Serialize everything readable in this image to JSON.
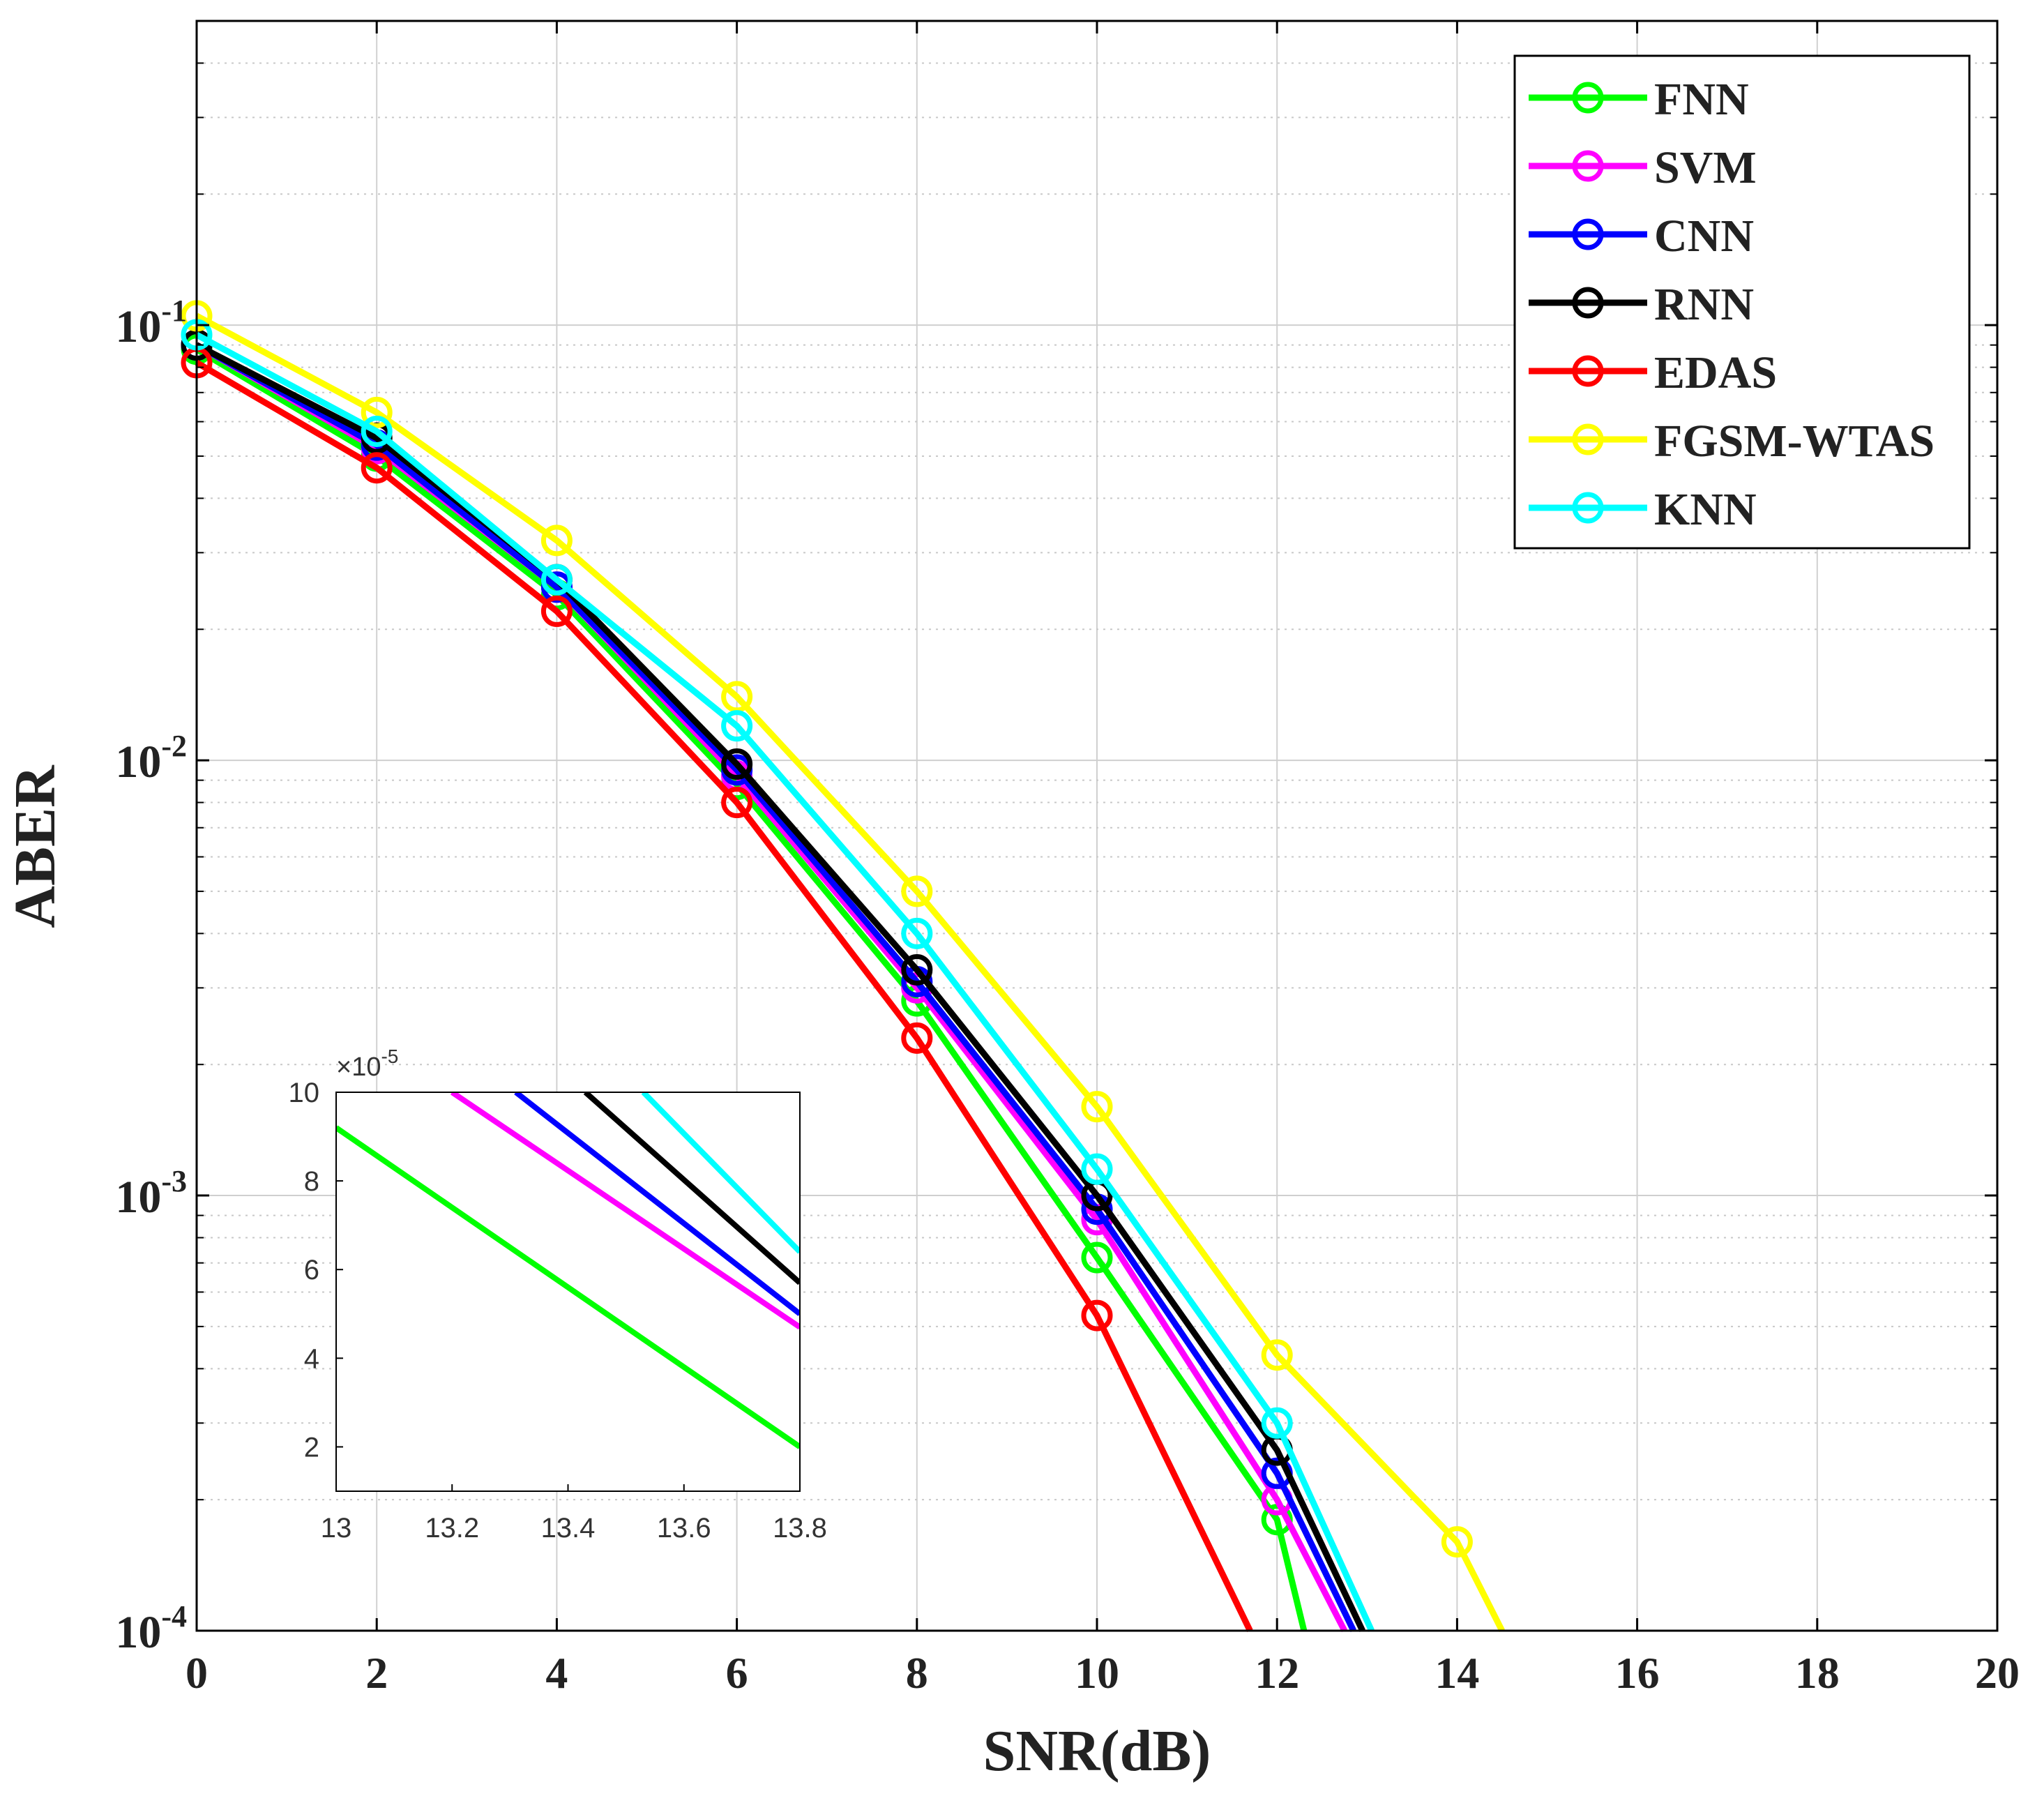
{
  "chart_data": {
    "type": "line",
    "title": "",
    "xlabel": "SNR(dB)",
    "ylabel": "ABER",
    "xlim": [
      0,
      20
    ],
    "ylim": [
      0.0001,
      0.5
    ],
    "yscale": "log",
    "grid": true,
    "legend_position": "top-right",
    "x_ticks": [
      "0",
      "2",
      "4",
      "6",
      "8",
      "10",
      "12",
      "14",
      "16",
      "18",
      "20"
    ],
    "y_ticks": [
      {
        "base": "10",
        "exp": "-1",
        "value": 0.1
      },
      {
        "base": "10",
        "exp": "-2",
        "value": 0.01
      },
      {
        "base": "10",
        "exp": "-3",
        "value": 0.001
      },
      {
        "base": "10",
        "exp": "-4",
        "value": 0.0001
      }
    ],
    "series": [
      {
        "name": "FNN",
        "color": "#00ff00",
        "x": [
          0,
          2,
          4,
          6,
          8,
          10,
          12,
          12.3
        ],
        "y": [
          0.088,
          0.05,
          0.024,
          0.0088,
          0.0028,
          0.00072,
          0.00018,
          0.0001
        ],
        "marker_count": 7
      },
      {
        "name": "SVM",
        "color": "#ff00ff",
        "x": [
          0,
          2,
          4,
          6,
          8,
          10,
          12,
          12.75
        ],
        "y": [
          0.09,
          0.052,
          0.025,
          0.0092,
          0.003,
          0.00088,
          0.0002,
          0.0001
        ],
        "marker_count": 7
      },
      {
        "name": "CNN",
        "color": "#0000ff",
        "x": [
          0,
          2,
          4,
          6,
          8,
          10,
          12,
          12.85
        ],
        "y": [
          0.09,
          0.053,
          0.025,
          0.0095,
          0.0031,
          0.00093,
          0.00023,
          0.0001
        ],
        "marker_count": 7
      },
      {
        "name": "RNN",
        "color": "#000000",
        "x": [
          0,
          2,
          4,
          6,
          8,
          10,
          12,
          12.95
        ],
        "y": [
          0.09,
          0.055,
          0.026,
          0.0098,
          0.0033,
          0.001,
          0.00026,
          0.0001
        ],
        "marker_count": 7
      },
      {
        "name": "EDAS",
        "color": "#ff0000",
        "x": [
          0,
          2,
          4,
          6,
          8,
          10,
          11.7
        ],
        "y": [
          0.082,
          0.047,
          0.022,
          0.008,
          0.0023,
          0.00053,
          0.0001
        ],
        "marker_count": 6
      },
      {
        "name": "FGSM-WTAS",
        "color": "#ffff00",
        "x": [
          0,
          2,
          4,
          6,
          8,
          10,
          12,
          14,
          14.5
        ],
        "y": [
          0.105,
          0.063,
          0.032,
          0.014,
          0.005,
          0.0016,
          0.00043,
          0.00016,
          0.0001
        ],
        "marker_count": 8
      },
      {
        "name": "KNN",
        "color": "#00ffff",
        "x": [
          0,
          2,
          4,
          6,
          8,
          10,
          12,
          13.05
        ],
        "y": [
          0.095,
          0.057,
          0.026,
          0.012,
          0.004,
          0.00115,
          0.0003,
          0.0001
        ],
        "marker_count": 7
      }
    ],
    "inset": {
      "xlim": [
        13,
        13.8
      ],
      "ylim": [
        1,
        10
      ],
      "multiplier_base": "10",
      "multiplier_exp": "-5",
      "x_ticks": [
        "13",
        "13.2",
        "13.4",
        "13.6",
        "13.8"
      ],
      "y_ticks": [
        "2",
        "4",
        "6",
        "8",
        "10"
      ],
      "lines": [
        {
          "name": "FNN",
          "color": "#00ff00",
          "x": [
            13,
            13.8
          ],
          "y": [
            9.2,
            2.0
          ]
        },
        {
          "name": "SVM",
          "color": "#ff00ff",
          "x": [
            13.2,
            13.8
          ],
          "y": [
            10,
            4.7
          ]
        },
        {
          "name": "CNN",
          "color": "#0000ff",
          "x": [
            13.31,
            13.8
          ],
          "y": [
            10,
            5.0
          ]
        },
        {
          "name": "RNN",
          "color": "#000000",
          "x": [
            13.43,
            13.8
          ],
          "y": [
            10,
            5.7
          ]
        },
        {
          "name": "KNN",
          "color": "#00ffff",
          "x": [
            13.53,
            13.8
          ],
          "y": [
            10,
            6.4
          ]
        }
      ]
    }
  }
}
